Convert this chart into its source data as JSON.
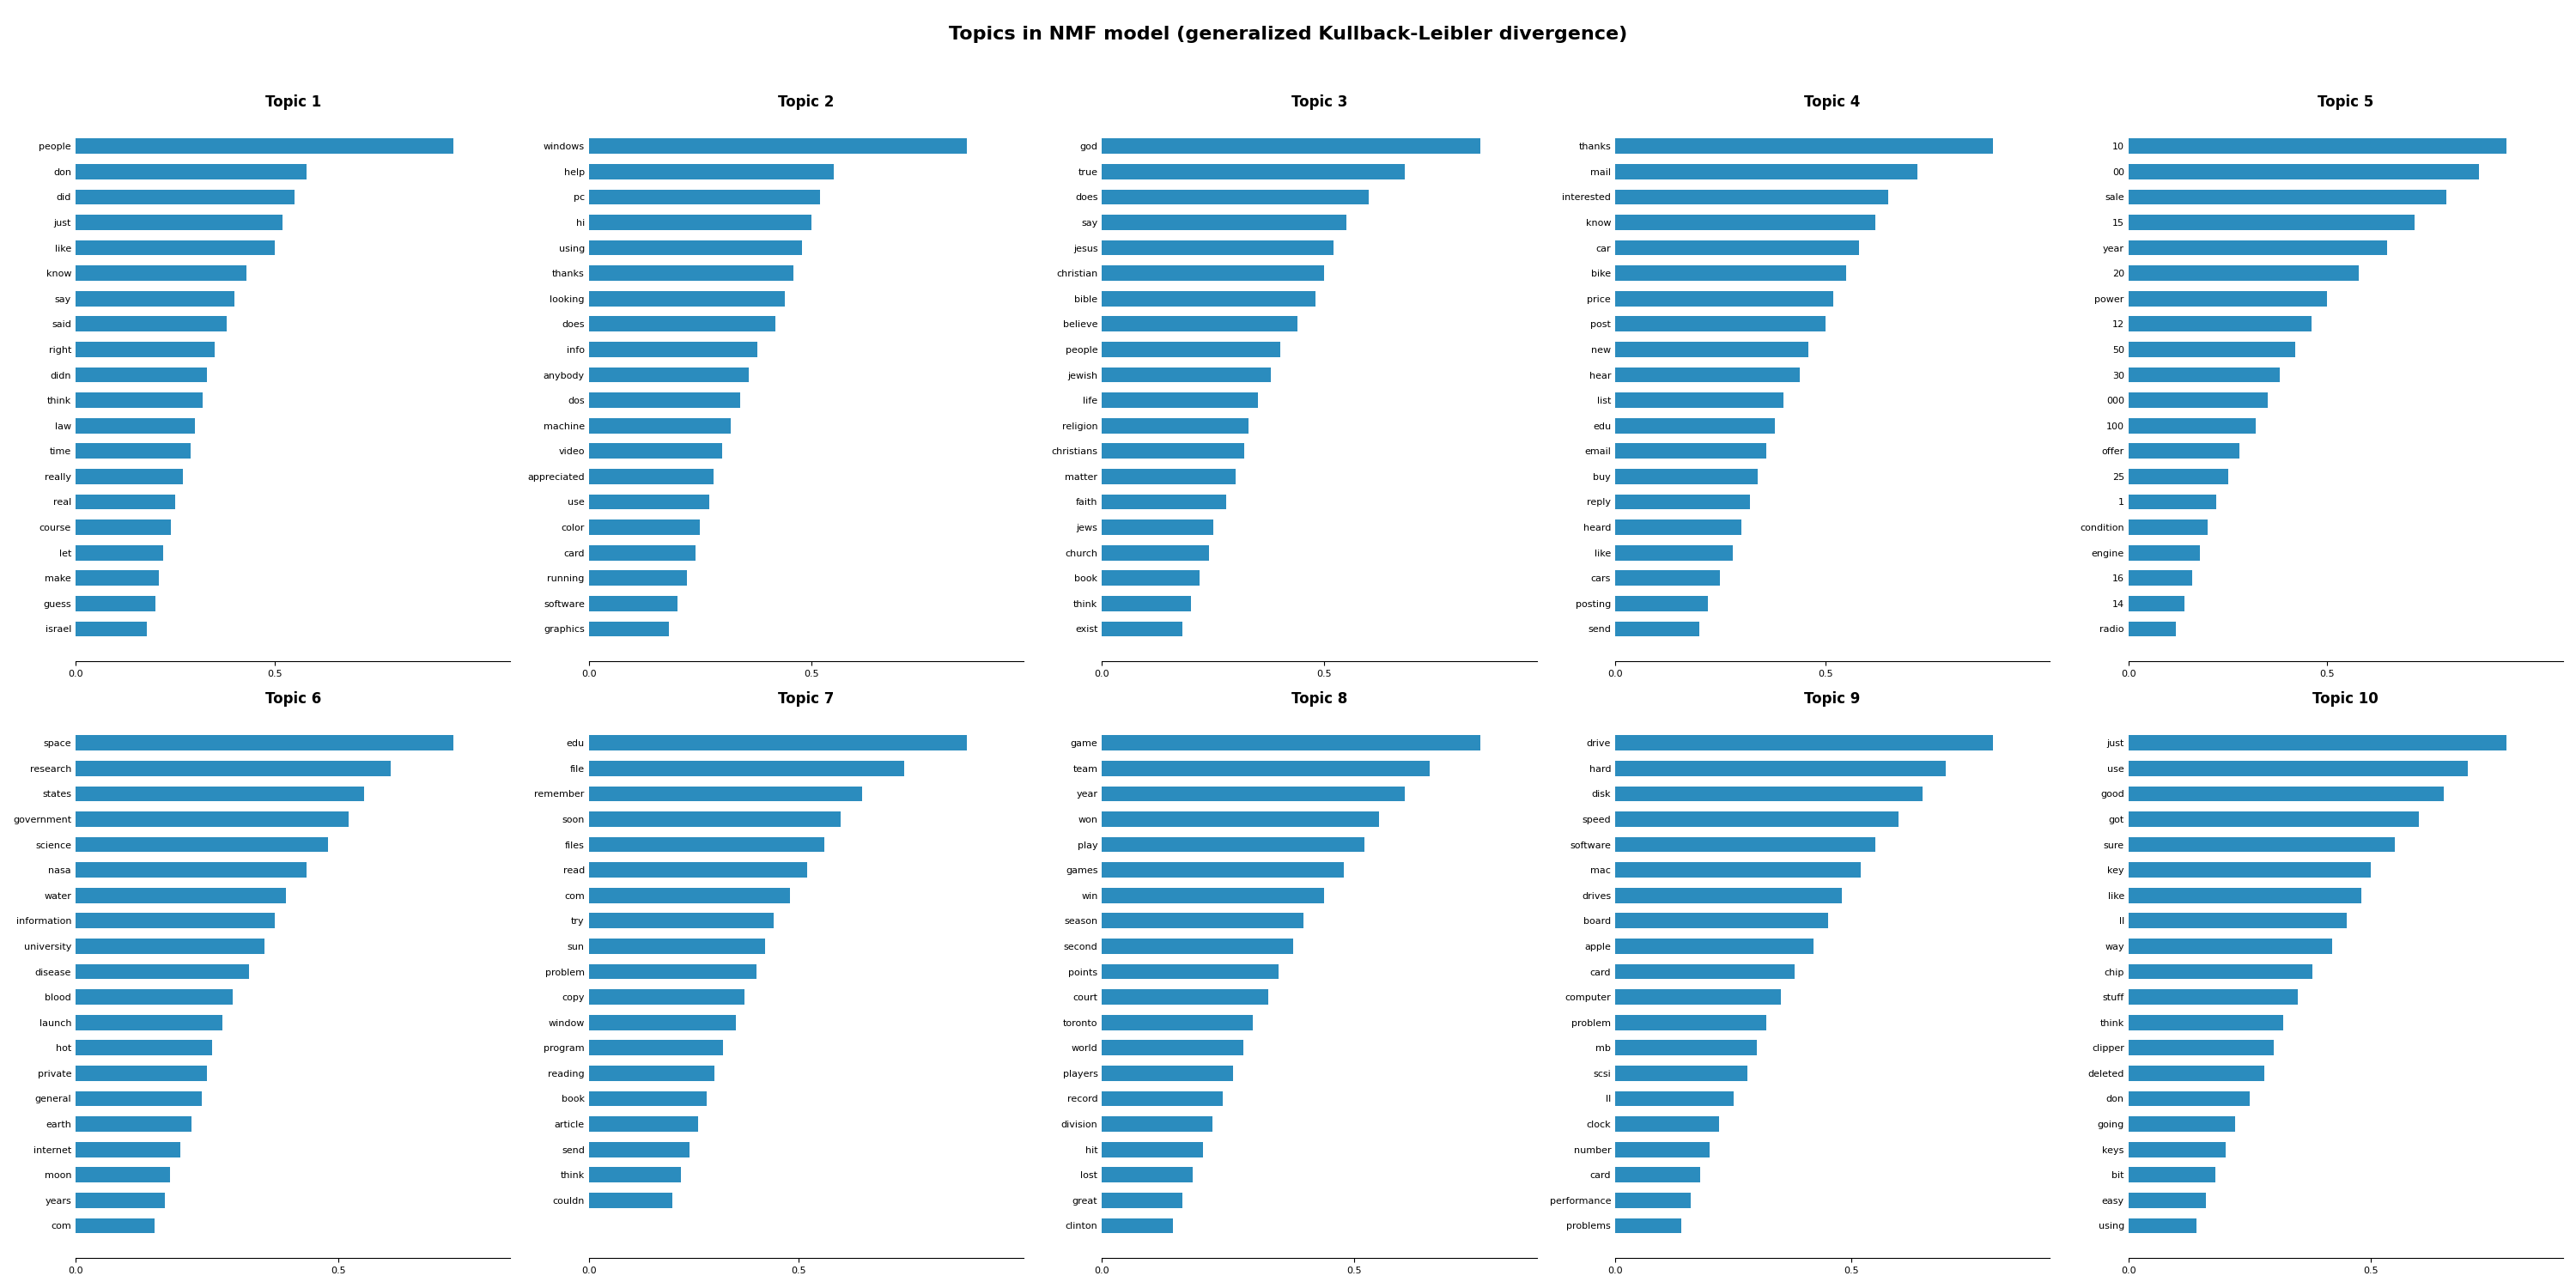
{
  "title": "Topics in NMF model (generalized Kullback-Leibler divergence)",
  "topics": [
    {
      "name": "Topic 1",
      "words": [
        "people",
        "don",
        "did",
        "just",
        "like",
        "know",
        "say",
        "said",
        "right",
        "didn",
        "think",
        "law",
        "time",
        "really",
        "real",
        "course",
        "let",
        "make",
        "guess",
        "israel"
      ],
      "values": [
        0.95,
        0.58,
        0.55,
        0.52,
        0.5,
        0.43,
        0.4,
        0.38,
        0.35,
        0.33,
        0.32,
        0.3,
        0.29,
        0.27,
        0.25,
        0.24,
        0.22,
        0.21,
        0.2,
        0.18
      ]
    },
    {
      "name": "Topic 2",
      "words": [
        "windows",
        "help",
        "pc",
        "hi",
        "using",
        "thanks",
        "looking",
        "does",
        "info",
        "anybody",
        "dos",
        "machine",
        "video",
        "appreciated",
        "use",
        "color",
        "card",
        "running",
        "software",
        "graphics"
      ],
      "values": [
        0.85,
        0.55,
        0.52,
        0.5,
        0.48,
        0.46,
        0.44,
        0.42,
        0.38,
        0.36,
        0.34,
        0.32,
        0.3,
        0.28,
        0.27,
        0.25,
        0.24,
        0.22,
        0.2,
        0.18
      ]
    },
    {
      "name": "Topic 3",
      "words": [
        "god",
        "true",
        "does",
        "say",
        "jesus",
        "christian",
        "bible",
        "believe",
        "people",
        "jewish",
        "life",
        "religion",
        "christians",
        "matter",
        "faith",
        "jews",
        "church",
        "book",
        "think",
        "exist"
      ],
      "values": [
        0.85,
        0.68,
        0.6,
        0.55,
        0.52,
        0.5,
        0.48,
        0.44,
        0.4,
        0.38,
        0.35,
        0.33,
        0.32,
        0.3,
        0.28,
        0.25,
        0.24,
        0.22,
        0.2,
        0.18
      ]
    },
    {
      "name": "Topic 4",
      "words": [
        "thanks",
        "mail",
        "interested",
        "know",
        "car",
        "bike",
        "price",
        "post",
        "new",
        "hear",
        "list",
        "edu",
        "email",
        "buy",
        "reply",
        "heard",
        "like",
        "cars",
        "posting",
        "send"
      ],
      "values": [
        0.9,
        0.72,
        0.65,
        0.62,
        0.58,
        0.55,
        0.52,
        0.5,
        0.46,
        0.44,
        0.4,
        0.38,
        0.36,
        0.34,
        0.32,
        0.3,
        0.28,
        0.25,
        0.22,
        0.2
      ]
    },
    {
      "name": "Topic 5",
      "words": [
        "10",
        "00",
        "sale",
        "15",
        "year",
        "20",
        "power",
        "12",
        "50",
        "30",
        "000",
        "100",
        "offer",
        "25",
        "1",
        "condition",
        "engine",
        "16",
        "14",
        "radio"
      ],
      "values": [
        0.95,
        0.88,
        0.8,
        0.72,
        0.65,
        0.58,
        0.5,
        0.46,
        0.42,
        0.38,
        0.35,
        0.32,
        0.28,
        0.25,
        0.22,
        0.2,
        0.18,
        0.16,
        0.14,
        0.12
      ]
    },
    {
      "name": "Topic 6",
      "words": [
        "space",
        "research",
        "states",
        "government",
        "science",
        "nasa",
        "water",
        "information",
        "university",
        "disease",
        "blood",
        "launch",
        "hot",
        "private",
        "general",
        "earth",
        "internet",
        "moon",
        "years",
        "com"
      ],
      "values": [
        0.72,
        0.6,
        0.55,
        0.52,
        0.48,
        0.44,
        0.4,
        0.38,
        0.36,
        0.33,
        0.3,
        0.28,
        0.26,
        0.25,
        0.24,
        0.22,
        0.2,
        0.18,
        0.17,
        0.15
      ]
    },
    {
      "name": "Topic 7",
      "words": [
        "edu",
        "file",
        "remember",
        "soon",
        "files",
        "read",
        "com",
        "try",
        "sun",
        "problem",
        "copy",
        "window",
        "program",
        "reading",
        "book",
        "article",
        "send",
        "think",
        "couldn",
        ""
      ],
      "values": [
        0.9,
        0.75,
        0.65,
        0.6,
        0.56,
        0.52,
        0.48,
        0.44,
        0.42,
        0.4,
        0.37,
        0.35,
        0.32,
        0.3,
        0.28,
        0.26,
        0.24,
        0.22,
        0.2,
        0.0
      ]
    },
    {
      "name": "Topic 8",
      "words": [
        "game",
        "team",
        "year",
        "won",
        "play",
        "games",
        "win",
        "season",
        "second",
        "points",
        "court",
        "toronto",
        "world",
        "players",
        "record",
        "division",
        "hit",
        "lost",
        "great",
        "clinton"
      ],
      "values": [
        0.75,
        0.65,
        0.6,
        0.55,
        0.52,
        0.48,
        0.44,
        0.4,
        0.38,
        0.35,
        0.33,
        0.3,
        0.28,
        0.26,
        0.24,
        0.22,
        0.2,
        0.18,
        0.16,
        0.14
      ]
    },
    {
      "name": "Topic 9",
      "words": [
        "drive",
        "hard",
        "disk",
        "speed",
        "software",
        "mac",
        "drives",
        "board",
        "apple",
        "card",
        "computer",
        "problem",
        "mb",
        "scsi",
        "ll",
        "clock",
        "number",
        "card",
        "performance",
        "problems"
      ],
      "values": [
        0.8,
        0.7,
        0.65,
        0.6,
        0.55,
        0.52,
        0.48,
        0.45,
        0.42,
        0.38,
        0.35,
        0.32,
        0.3,
        0.28,
        0.25,
        0.22,
        0.2,
        0.18,
        0.16,
        0.14
      ]
    },
    {
      "name": "Topic 10",
      "words": [
        "just",
        "use",
        "good",
        "got",
        "sure",
        "key",
        "like",
        "ll",
        "way",
        "chip",
        "stuff",
        "think",
        "clipper",
        "deleted",
        "don",
        "going",
        "keys",
        "bit",
        "easy",
        "using"
      ],
      "values": [
        0.78,
        0.7,
        0.65,
        0.6,
        0.55,
        0.5,
        0.48,
        0.45,
        0.42,
        0.38,
        0.35,
        0.32,
        0.3,
        0.28,
        0.25,
        0.22,
        0.2,
        0.18,
        0.16,
        0.14
      ]
    }
  ],
  "bar_color": "#2b8cbe",
  "background_color": "#ffffff",
  "title_fontsize": 16,
  "topic_title_fontsize": 12,
  "tick_fontsize": 8
}
